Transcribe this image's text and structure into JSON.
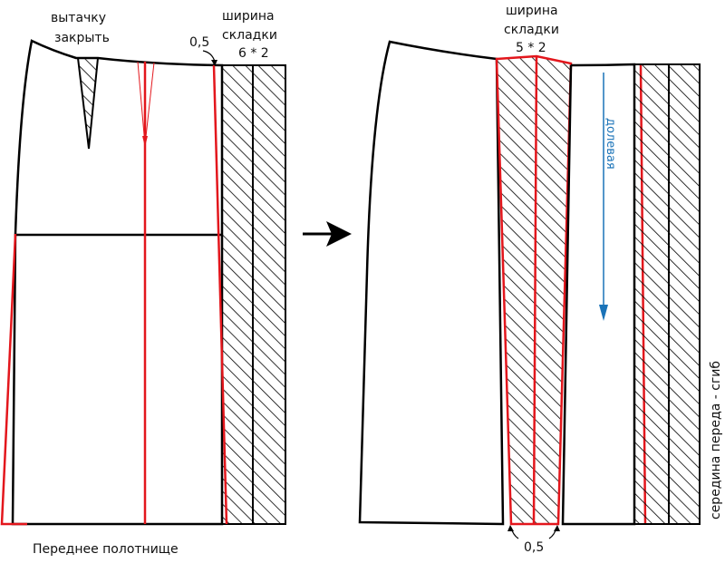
{
  "labels": {
    "dart_close_1": "вытачку",
    "dart_close_2": "закрыть",
    "offset_top": "0,5",
    "pleat_width_left_1": "ширина",
    "pleat_width_left_2": "складки",
    "pleat_width_left_3": "6 * 2",
    "pleat_width_right_1": "ширина",
    "pleat_width_right_2": "складки",
    "pleat_width_right_3": "5 * 2",
    "grain": "долевая",
    "offset_bottom": "0,5",
    "center_front": "середина переда - сгиб",
    "caption": "Переднее полотнище"
  },
  "colors": {
    "outline": "#000000",
    "construction": "#e3161c",
    "grainline": "#1a73b8"
  }
}
